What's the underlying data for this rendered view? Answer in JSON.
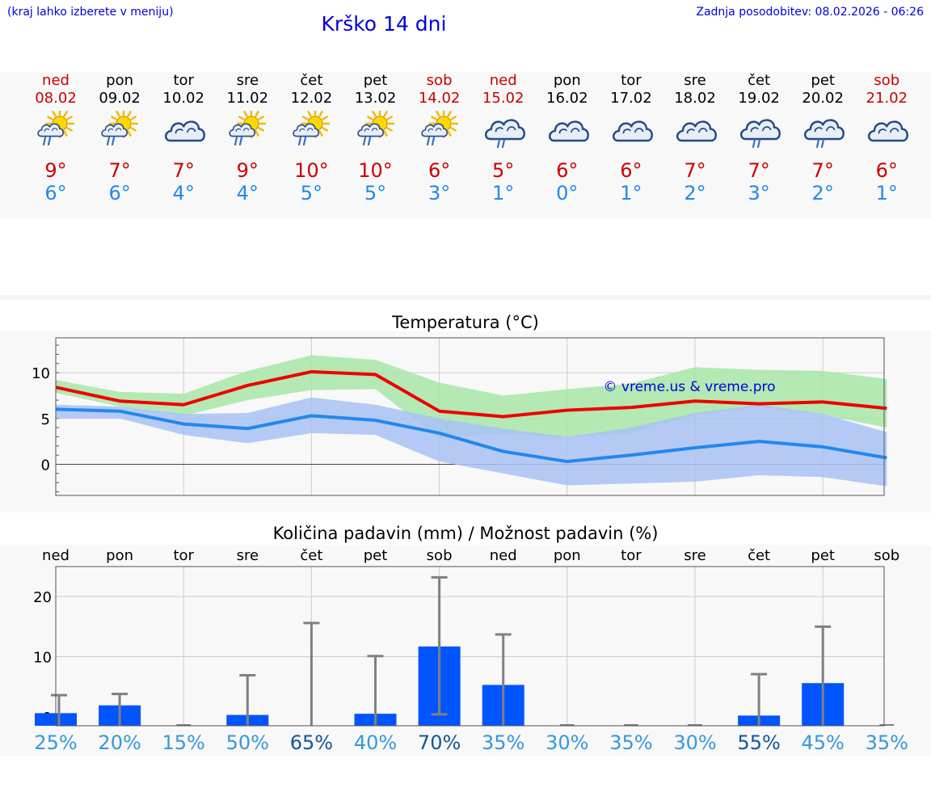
{
  "header": {
    "hint": "(kraj lahko izberete v meniju)",
    "title": "Krško 14 dni",
    "updated": "Zadnja posodobitev: 08.02.2026 - 06:26"
  },
  "days": [
    {
      "name": "ned",
      "date": "08.02",
      "weekend": true,
      "icon": "sun-cloud-rain-icon",
      "tmax": "9°",
      "tmin": "6°"
    },
    {
      "name": "pon",
      "date": "09.02",
      "weekend": false,
      "icon": "sun-cloud-rain-icon",
      "tmax": "7°",
      "tmin": "6°"
    },
    {
      "name": "tor",
      "date": "10.02",
      "weekend": false,
      "icon": "cloudy-icon",
      "tmax": "7°",
      "tmin": "4°"
    },
    {
      "name": "sre",
      "date": "11.02",
      "weekend": false,
      "icon": "sun-cloud-rain-icon",
      "tmax": "9°",
      "tmin": "4°"
    },
    {
      "name": "čet",
      "date": "12.02",
      "weekend": false,
      "icon": "sun-cloud-rain-icon",
      "tmax": "10°",
      "tmin": "5°"
    },
    {
      "name": "pet",
      "date": "13.02",
      "weekend": false,
      "icon": "sun-cloud-rain-icon",
      "tmax": "10°",
      "tmin": "5°"
    },
    {
      "name": "sob",
      "date": "14.02",
      "weekend": true,
      "icon": "sun-cloud-rain-icon",
      "tmax": "6°",
      "tmin": "3°"
    },
    {
      "name": "ned",
      "date": "15.02",
      "weekend": true,
      "icon": "cloud-rain-icon",
      "tmax": "5°",
      "tmin": "1°"
    },
    {
      "name": "pon",
      "date": "16.02",
      "weekend": false,
      "icon": "cloudy-icon",
      "tmax": "6°",
      "tmin": "0°"
    },
    {
      "name": "tor",
      "date": "17.02",
      "weekend": false,
      "icon": "cloudy-icon",
      "tmax": "6°",
      "tmin": "1°"
    },
    {
      "name": "sre",
      "date": "18.02",
      "weekend": false,
      "icon": "cloudy-icon",
      "tmax": "7°",
      "tmin": "2°"
    },
    {
      "name": "čet",
      "date": "19.02",
      "weekend": false,
      "icon": "cloud-rain-icon",
      "tmax": "7°",
      "tmin": "3°"
    },
    {
      "name": "pet",
      "date": "20.02",
      "weekend": false,
      "icon": "cloud-rain-icon",
      "tmax": "7°",
      "tmin": "2°"
    },
    {
      "name": "sob",
      "date": "21.02",
      "weekend": true,
      "icon": "cloudy-icon",
      "tmax": "6°",
      "tmin": "1°"
    }
  ],
  "colors": {
    "weekend": "#cc0000",
    "max_line": "#ee0000",
    "min_line": "#2288ee",
    "max_band": "#a8e6a8",
    "min_band": "#a8c2f4",
    "bar": "#0055ff",
    "error_bar": "#808080",
    "prob_high": "#115599",
    "prob_low": "#3399dd"
  },
  "chart_data": [
    {
      "type": "line",
      "title": "Temperatura (°C)",
      "watermark": "© vreme.us & vreme.pro",
      "ylim": [
        -3.4,
        13.8
      ],
      "yticks": [
        0,
        5,
        10
      ],
      "grid": true,
      "x": [
        0,
        1,
        2,
        3,
        4,
        5,
        6,
        7,
        8,
        9,
        10,
        11,
        12,
        13
      ],
      "series": [
        {
          "name": "max",
          "values": [
            8.4,
            6.9,
            6.5,
            8.6,
            10.1,
            9.8,
            5.8,
            5.2,
            5.9,
            6.2,
            6.9,
            6.6,
            6.8,
            6.1
          ]
        },
        {
          "name": "max_band_low",
          "values": [
            7.8,
            6.3,
            5.3,
            7.0,
            8.1,
            8.2,
            2.8,
            3.4,
            2.9,
            3.4,
            5.4,
            6.3,
            5.4,
            4.0
          ]
        },
        {
          "name": "max_band_high",
          "values": [
            9.2,
            7.9,
            7.7,
            10.2,
            11.9,
            11.4,
            8.9,
            7.5,
            8.2,
            8.8,
            10.6,
            10.3,
            10.2,
            9.3
          ]
        },
        {
          "name": "min",
          "values": [
            6.0,
            5.8,
            4.4,
            3.9,
            5.3,
            4.8,
            3.4,
            1.4,
            0.3,
            1.0,
            1.8,
            2.5,
            1.9,
            0.7
          ]
        },
        {
          "name": "min_band_low",
          "values": [
            5.0,
            5.0,
            3.2,
            2.3,
            3.4,
            3.2,
            0.3,
            -1.0,
            -2.3,
            -2.1,
            -1.9,
            -1.2,
            -1.4,
            -2.4
          ]
        },
        {
          "name": "min_band_high",
          "values": [
            6.5,
            6.3,
            5.5,
            5.6,
            7.3,
            6.5,
            5.0,
            3.9,
            3.0,
            4.0,
            5.6,
            6.5,
            5.5,
            3.5
          ]
        }
      ]
    },
    {
      "type": "bar",
      "title": "Količina padavin (mm) / Možnost padavin (%)",
      "categories": [
        "ned",
        "pon",
        "tor",
        "sre",
        "čet",
        "pet",
        "sob",
        "ned",
        "pon",
        "tor",
        "sre",
        "čet",
        "pet",
        "sob"
      ],
      "ylim": [
        -1.5,
        25
      ],
      "yticks": [
        0,
        10,
        20
      ],
      "grid": true,
      "values": [
        0.6,
        1.9,
        0.0,
        0.3,
        0.0,
        0.5,
        11.7,
        5.3,
        0.0,
        0.0,
        0.0,
        0.2,
        5.6,
        0.0
      ],
      "err_low": [
        0.0,
        0.0,
        0.0,
        0.0,
        0.0,
        0.0,
        0.4,
        0.0,
        0.0,
        0.0,
        0.0,
        0.0,
        0.0,
        0.0
      ],
      "err_high": [
        3.6,
        3.8,
        0.0,
        6.9,
        15.6,
        10.1,
        23.2,
        13.7,
        0.0,
        0.0,
        0.0,
        7.1,
        15.0,
        0.0
      ],
      "probability": [
        "25%",
        "20%",
        "15%",
        "50%",
        "65%",
        "40%",
        "70%",
        "35%",
        "30%",
        "35%",
        "30%",
        "55%",
        "45%",
        "35%"
      ],
      "prob_emphasis": [
        false,
        false,
        false,
        false,
        true,
        false,
        true,
        false,
        false,
        false,
        false,
        true,
        false,
        false
      ]
    }
  ]
}
